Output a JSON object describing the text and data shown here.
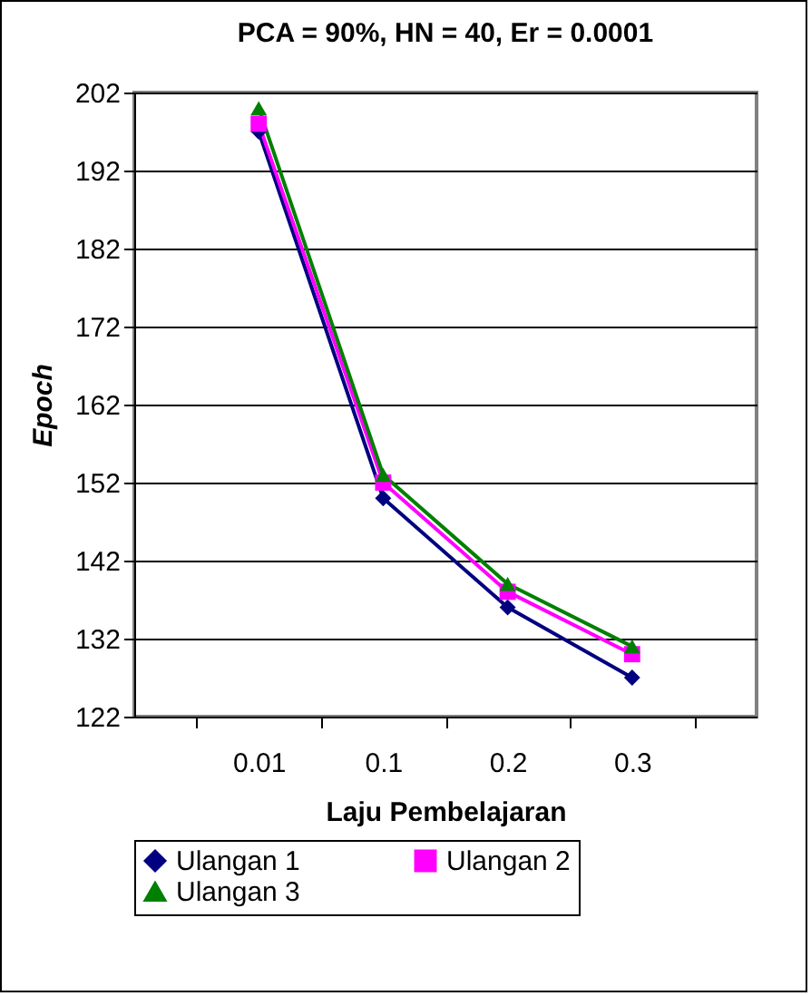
{
  "chart_data": {
    "type": "line",
    "title": "PCA = 90%, HN = 40, Er = 0.0001",
    "xlabel": "Laju Pembelajaran",
    "ylabel": "Epoch",
    "categories": [
      "0.01",
      "0.1",
      "0.2",
      "0.3"
    ],
    "series": [
      {
        "name": "Ulangan 1",
        "color": "#000080",
        "marker": "diamond",
        "values": [
          197,
          150,
          136,
          127
        ]
      },
      {
        "name": "Ulangan 2",
        "color": "#ff00ff",
        "marker": "square",
        "values": [
          198,
          152,
          138,
          130
        ]
      },
      {
        "name": "Ulangan 3",
        "color": "#008000",
        "marker": "triangle",
        "values": [
          200,
          153,
          139,
          131
        ]
      }
    ],
    "ylim": [
      122,
      202
    ],
    "yticks": [
      122,
      132,
      142,
      152,
      162,
      172,
      182,
      192,
      202
    ],
    "grid": "y",
    "legend": "bottom",
    "line_style": "solid"
  }
}
